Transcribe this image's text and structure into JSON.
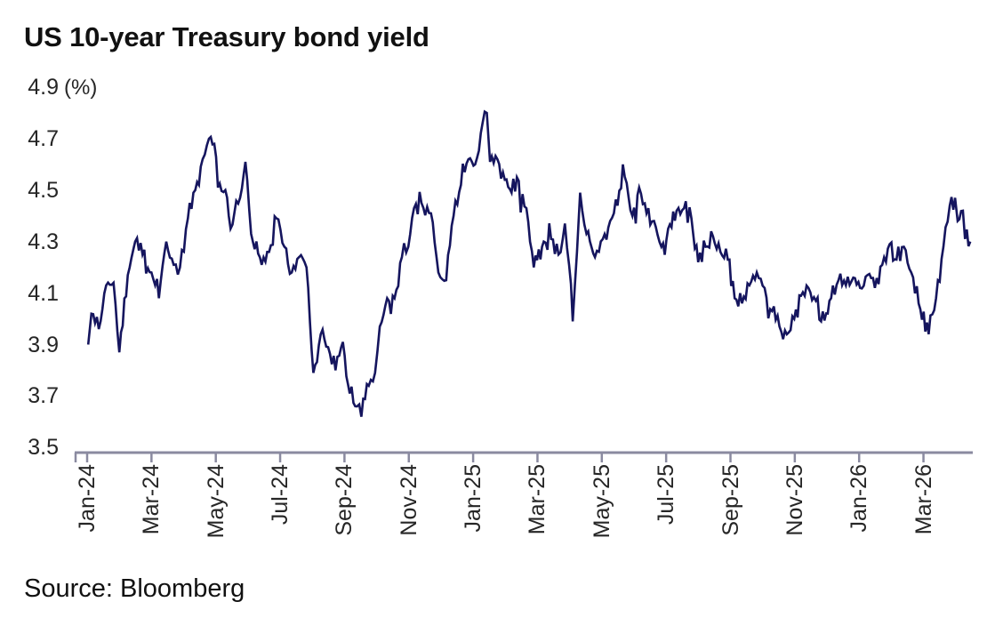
{
  "title": "US 10-year Treasury bond yield",
  "source": "Source: Bloomberg",
  "chart_data": {
    "type": "line",
    "title": "US 10-year Treasury bond yield",
    "xlabel": "",
    "ylabel": "(%)",
    "unit_label": "(%)",
    "ylim": [
      3.5,
      4.9
    ],
    "y_tick_labels": [
      "4.9",
      "4.7",
      "4.5",
      "4.3",
      "4.1",
      "3.9",
      "3.7",
      "3.5"
    ],
    "x_tick_labels": [
      "Jan-24",
      "Mar-24",
      "May-24",
      "Jul-24",
      "Sep-24",
      "Nov-24",
      "Jan-25",
      "Mar-25",
      "May-25",
      "Jul-25",
      "Sep-25",
      "Nov-25",
      "Jan-26",
      "Mar-26"
    ],
    "grid": false,
    "legend": "none",
    "line_color": "#15155E",
    "axis_color": "#8A8AA0",
    "text_color": "#262626",
    "noise": {
      "seed": 11,
      "amplitude": 0.028,
      "spike_chance": 0.07,
      "step_months": 0.05
    },
    "series": [
      {
        "name": "US 10-year Treasury bond yield (%)",
        "points": [
          [
            "2024-01-02",
            3.9
          ],
          [
            "2024-01-05",
            4.02
          ],
          [
            "2024-01-12",
            3.96
          ],
          [
            "2024-01-19",
            4.13
          ],
          [
            "2024-01-26",
            4.14
          ],
          [
            "2024-02-01",
            3.87
          ],
          [
            "2024-02-09",
            4.17
          ],
          [
            "2024-02-16",
            4.3
          ],
          [
            "2024-02-23",
            4.25
          ],
          [
            "2024-03-01",
            4.18
          ],
          [
            "2024-03-08",
            4.08
          ],
          [
            "2024-03-15",
            4.3
          ],
          [
            "2024-03-22",
            4.21
          ],
          [
            "2024-03-28",
            4.2
          ],
          [
            "2024-04-05",
            4.39
          ],
          [
            "2024-04-12",
            4.5
          ],
          [
            "2024-04-19",
            4.62
          ],
          [
            "2024-04-25",
            4.7
          ],
          [
            "2024-04-30",
            4.68
          ],
          [
            "2024-05-03",
            4.51
          ],
          [
            "2024-05-10",
            4.5
          ],
          [
            "2024-05-15",
            4.35
          ],
          [
            "2024-05-24",
            4.47
          ],
          [
            "2024-05-29",
            4.61
          ],
          [
            "2024-06-04",
            4.33
          ],
          [
            "2024-06-14",
            4.21
          ],
          [
            "2024-06-21",
            4.26
          ],
          [
            "2024-06-28",
            4.39
          ],
          [
            "2024-07-05",
            4.28
          ],
          [
            "2024-07-12",
            4.18
          ],
          [
            "2024-07-19",
            4.24
          ],
          [
            "2024-07-26",
            4.2
          ],
          [
            "2024-08-02",
            3.79
          ],
          [
            "2024-08-09",
            3.94
          ],
          [
            "2024-08-16",
            3.89
          ],
          [
            "2024-08-23",
            3.8
          ],
          [
            "2024-08-30",
            3.91
          ],
          [
            "2024-09-06",
            3.71
          ],
          [
            "2024-09-13",
            3.66
          ],
          [
            "2024-09-17",
            3.62
          ],
          [
            "2024-09-24",
            3.74
          ],
          [
            "2024-09-30",
            3.79
          ],
          [
            "2024-10-04",
            3.97
          ],
          [
            "2024-10-11",
            4.08
          ],
          [
            "2024-10-18",
            4.08
          ],
          [
            "2024-10-25",
            4.24
          ],
          [
            "2024-10-31",
            4.28
          ],
          [
            "2024-11-06",
            4.43
          ],
          [
            "2024-11-13",
            4.45
          ],
          [
            "2024-11-22",
            4.41
          ],
          [
            "2024-11-29",
            4.18
          ],
          [
            "2024-12-06",
            4.15
          ],
          [
            "2024-12-13",
            4.4
          ],
          [
            "2024-12-20",
            4.52
          ],
          [
            "2024-12-27",
            4.62
          ],
          [
            "2025-01-03",
            4.6
          ],
          [
            "2025-01-10",
            4.76
          ],
          [
            "2025-01-14",
            4.8
          ],
          [
            "2025-01-17",
            4.61
          ],
          [
            "2025-01-24",
            4.62
          ],
          [
            "2025-01-31",
            4.54
          ],
          [
            "2025-02-07",
            4.49
          ],
          [
            "2025-02-12",
            4.55
          ],
          [
            "2025-02-21",
            4.43
          ],
          [
            "2025-02-28",
            4.2
          ],
          [
            "2025-03-07",
            4.3
          ],
          [
            "2025-03-14",
            4.31
          ],
          [
            "2025-03-21",
            4.25
          ],
          [
            "2025-03-27",
            4.37
          ],
          [
            "2025-03-31",
            4.21
          ],
          [
            "2025-04-04",
            3.99
          ],
          [
            "2025-04-08",
            4.26
          ],
          [
            "2025-04-11",
            4.49
          ],
          [
            "2025-04-17",
            4.33
          ],
          [
            "2025-04-25",
            4.24
          ],
          [
            "2025-05-02",
            4.31
          ],
          [
            "2025-05-09",
            4.38
          ],
          [
            "2025-05-16",
            4.44
          ],
          [
            "2025-05-21",
            4.6
          ],
          [
            "2025-05-30",
            4.4
          ],
          [
            "2025-06-06",
            4.51
          ],
          [
            "2025-06-13",
            4.41
          ],
          [
            "2025-06-20",
            4.38
          ],
          [
            "2025-06-27",
            4.28
          ],
          [
            "2025-07-03",
            4.35
          ],
          [
            "2025-07-11",
            4.42
          ],
          [
            "2025-07-18",
            4.43
          ],
          [
            "2025-07-25",
            4.39
          ],
          [
            "2025-08-01",
            4.22
          ],
          [
            "2025-08-08",
            4.28
          ],
          [
            "2025-08-15",
            4.32
          ],
          [
            "2025-08-22",
            4.26
          ],
          [
            "2025-08-29",
            4.23
          ],
          [
            "2025-09-05",
            4.08
          ],
          [
            "2025-09-12",
            4.06
          ],
          [
            "2025-09-19",
            4.13
          ],
          [
            "2025-09-26",
            4.18
          ],
          [
            "2025-10-03",
            4.12
          ],
          [
            "2025-10-10",
            4.03
          ],
          [
            "2025-10-17",
            3.97
          ],
          [
            "2025-10-24",
            3.94
          ],
          [
            "2025-10-31",
            4.0
          ],
          [
            "2025-11-07",
            4.09
          ],
          [
            "2025-11-14",
            4.12
          ],
          [
            "2025-11-21",
            4.07
          ],
          [
            "2025-11-26",
            3.99
          ],
          [
            "2025-12-05",
            4.08
          ],
          [
            "2025-12-12",
            4.15
          ],
          [
            "2025-12-19",
            4.13
          ],
          [
            "2025-12-26",
            4.16
          ],
          [
            "2026-01-02",
            4.12
          ],
          [
            "2026-01-09",
            4.17
          ],
          [
            "2026-01-16",
            4.12
          ],
          [
            "2026-01-23",
            4.21
          ],
          [
            "2026-01-30",
            4.29
          ],
          [
            "2026-02-06",
            4.23
          ],
          [
            "2026-02-13",
            4.28
          ],
          [
            "2026-02-20",
            4.18
          ],
          [
            "2026-02-27",
            4.06
          ],
          [
            "2026-03-06",
            3.94
          ],
          [
            "2026-03-13",
            4.08
          ],
          [
            "2026-03-20",
            4.28
          ],
          [
            "2026-03-26",
            4.44
          ],
          [
            "2026-03-31",
            4.47
          ],
          [
            "2026-04-03",
            4.38
          ],
          [
            "2026-04-08",
            4.42
          ],
          [
            "2026-04-10",
            4.31
          ],
          [
            "2026-04-15",
            4.3
          ]
        ]
      }
    ]
  }
}
